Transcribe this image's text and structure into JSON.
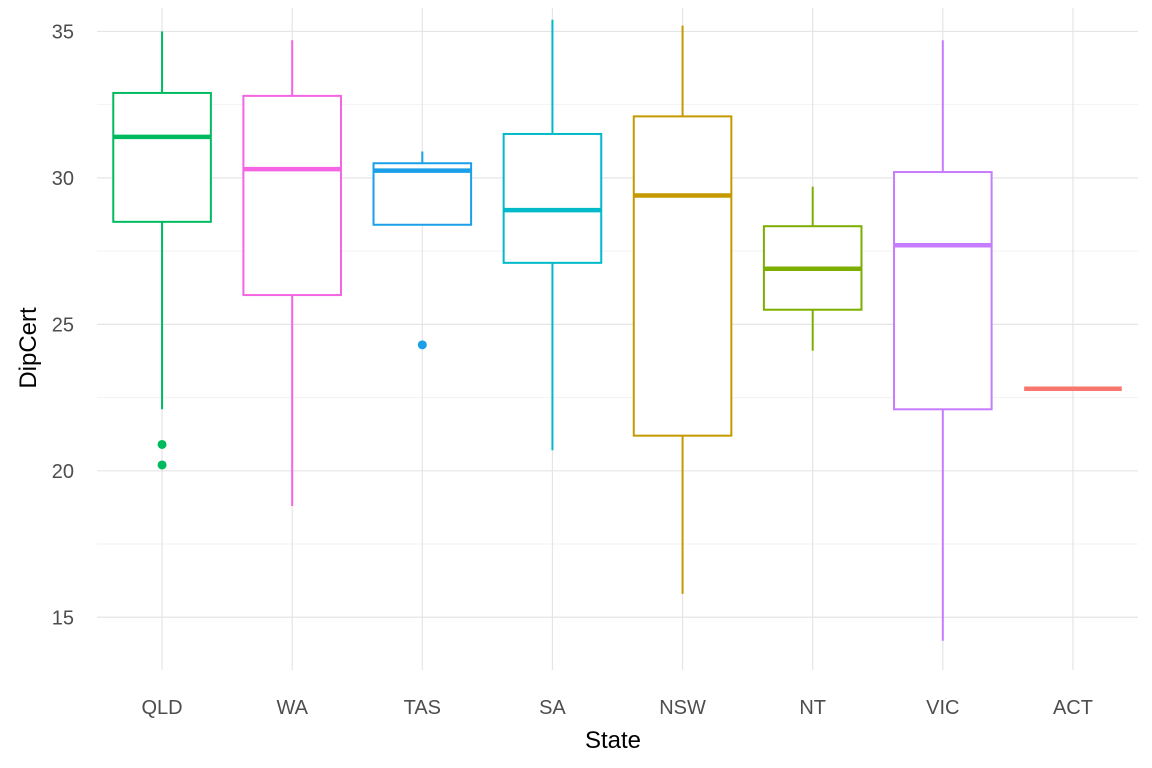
{
  "chart_data": {
    "type": "boxplot",
    "xlabel": "State",
    "ylabel": "DipCert",
    "ylim": [
      13.2,
      35.8
    ],
    "yticks": [
      15,
      20,
      25,
      30,
      35
    ],
    "ytick_labels": [
      "15",
      "20",
      "25",
      "30",
      "35"
    ],
    "grid": true,
    "legend": "none",
    "categories": [
      {
        "name": "QLD",
        "color": "#00BA5F",
        "whisker_low": 22.1,
        "q1": 28.5,
        "median": 31.4,
        "q3": 32.9,
        "whisker_high": 35.0,
        "outliers": [
          20.9,
          20.2
        ]
      },
      {
        "name": "WA",
        "color": "#F564E3",
        "whisker_low": 18.8,
        "q1": 26.0,
        "median": 30.3,
        "q3": 32.8,
        "whisker_high": 34.7,
        "outliers": []
      },
      {
        "name": "TAS",
        "color": "#1A9FE8",
        "whisker_low": 28.4,
        "q1": 28.4,
        "median": 30.25,
        "q3": 30.5,
        "whisker_high": 30.9,
        "outliers": [
          24.3
        ]
      },
      {
        "name": "SA",
        "color": "#00B9C9",
        "whisker_low": 20.7,
        "q1": 27.1,
        "median": 28.9,
        "q3": 31.5,
        "whisker_high": 35.4,
        "outliers": []
      },
      {
        "name": "NSW",
        "color": "#C49A00",
        "whisker_low": 15.8,
        "q1": 21.2,
        "median": 29.4,
        "q3": 32.1,
        "whisker_high": 35.2,
        "outliers": []
      },
      {
        "name": "NT",
        "color": "#7CAE00",
        "whisker_low": 24.1,
        "q1": 25.5,
        "median": 26.9,
        "q3": 28.35,
        "whisker_high": 29.7,
        "outliers": []
      },
      {
        "name": "VIC",
        "color": "#C77CFF",
        "whisker_low": 14.2,
        "q1": 22.1,
        "median": 27.7,
        "q3": 30.2,
        "whisker_high": 34.7,
        "outliers": []
      },
      {
        "name": "ACT",
        "color": "#F8766D",
        "whisker_low": 22.8,
        "q1": 22.8,
        "median": 22.8,
        "q3": 22.8,
        "whisker_high": 22.8,
        "outliers": []
      }
    ]
  }
}
